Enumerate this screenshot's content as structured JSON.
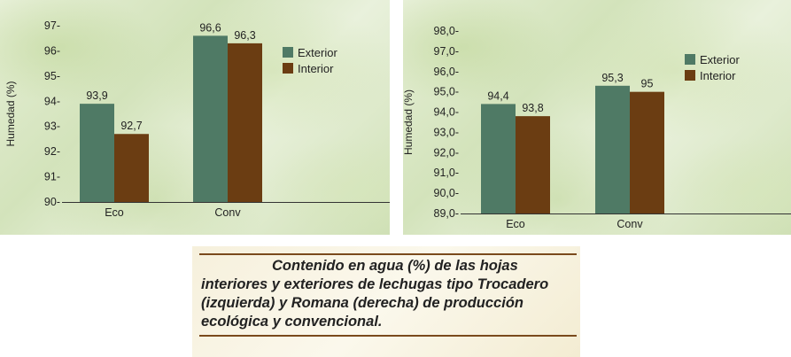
{
  "chart_data": [
    {
      "type": "bar",
      "categories": [
        "Eco",
        "Conv"
      ],
      "series": [
        {
          "name": "Exterior",
          "values": [
            93.9,
            96.6
          ],
          "color": "#4f7a65"
        },
        {
          "name": "Interior",
          "values": [
            92.7,
            96.3
          ],
          "color": "#6b3d12"
        }
      ],
      "value_labels": [
        [
          "93,9",
          "96,6"
        ],
        [
          "92,7",
          "96,3"
        ]
      ],
      "ylabel": "Humedad (%)",
      "ylim": [
        90,
        97
      ],
      "yticks": [
        90,
        91,
        92,
        93,
        94,
        95,
        96,
        97
      ],
      "ytick_labels": [
        "90-",
        "91-",
        "92-",
        "93-",
        "94-",
        "95-",
        "96-",
        "97-"
      ],
      "legend": "right",
      "grid": false
    },
    {
      "type": "bar",
      "categories": [
        "Eco",
        "Conv"
      ],
      "series": [
        {
          "name": "Exterior",
          "values": [
            94.4,
            95.3
          ],
          "color": "#4f7a65"
        },
        {
          "name": "Interior",
          "values": [
            93.8,
            95.0
          ],
          "color": "#6b3d12"
        }
      ],
      "value_labels": [
        [
          "94,4",
          "95,3"
        ],
        [
          "93,8",
          "95"
        ]
      ],
      "ylabel": "Humedad (%)",
      "ylim": [
        89,
        98
      ],
      "yticks": [
        89,
        90,
        91,
        92,
        93,
        94,
        95,
        96,
        97,
        98
      ],
      "ytick_labels": [
        "89,0-",
        "90,0-",
        "91,0-",
        "92,0-",
        "93,0-",
        "94,0-",
        "95,0-",
        "96,0-",
        "97,0-",
        "98,0-"
      ],
      "legend": "right",
      "grid": false
    }
  ],
  "caption": {
    "text": "Contenido en agua (%) de las hojas interiores y exteriores de lechugas tipo Trocadero (izquierda) y Romana (derecha) de producción ecológica y convencional."
  }
}
